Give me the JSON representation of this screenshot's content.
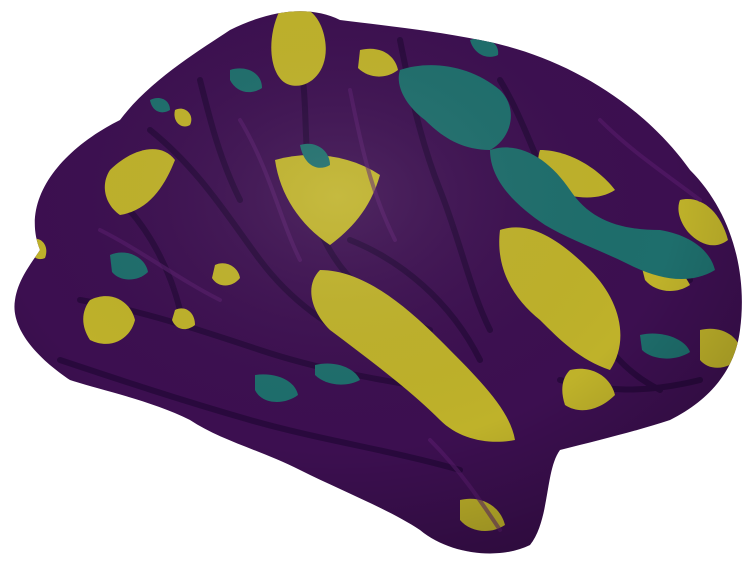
{
  "scene": {
    "background_color": "#ffffff",
    "subject": "brain-surface-render",
    "view": "lateral-left-hemisphere"
  },
  "colors": {
    "base": "#3c0f50",
    "base_dark": "#26093a",
    "base_light": "#5a1e6e",
    "label_yellow": "#bfb22a",
    "label_yellow_dark": "#8e8418",
    "label_teal": "#1e6e6c",
    "label_teal_dark": "#155553"
  },
  "parcel_labels": [
    {
      "name": "label-a",
      "color": "#3c0f50"
    },
    {
      "name": "label-b",
      "color": "#bfb22a"
    },
    {
      "name": "label-c",
      "color": "#1e6e6c"
    }
  ]
}
